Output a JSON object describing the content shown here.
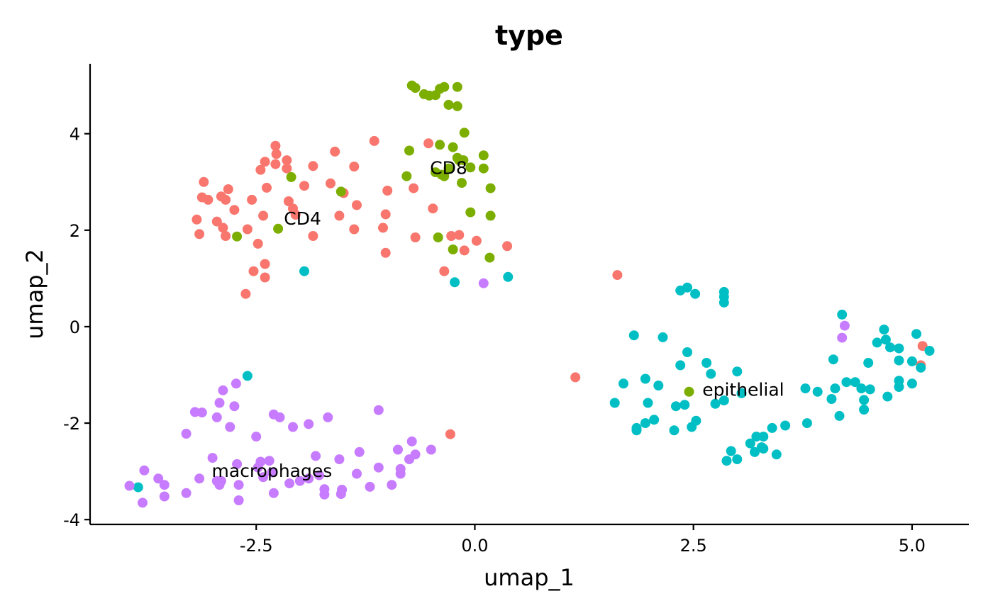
{
  "chart_data": {
    "type": "scatter",
    "title": "type",
    "xlabel": "umap_1",
    "ylabel": "umap_2",
    "xlim": [
      -4.4,
      5.65
    ],
    "ylim": [
      -4.1,
      5.45
    ],
    "grid": false,
    "legend": "none",
    "x_ticks": [
      {
        "value": -2.5,
        "label": "-2.5"
      },
      {
        "value": 0.0,
        "label": "0.0"
      },
      {
        "value": 2.5,
        "label": "2.5"
      },
      {
        "value": 5.0,
        "label": "5.0"
      }
    ],
    "y_ticks": [
      {
        "value": -4,
        "label": "-4"
      },
      {
        "value": -2,
        "label": "-2"
      },
      {
        "value": 0,
        "label": "0"
      },
      {
        "value": 2,
        "label": "2"
      },
      {
        "value": 4,
        "label": "4"
      }
    ],
    "series": [
      {
        "name": "CD4",
        "color": "#F8766D",
        "points": [
          [
            -3.1,
            3.0
          ],
          [
            -3.12,
            2.68
          ],
          [
            -3.15,
            1.92
          ],
          [
            -3.18,
            2.22
          ],
          [
            -3.05,
            2.63
          ],
          [
            -2.95,
            2.18
          ],
          [
            -2.88,
            2.05
          ],
          [
            -2.85,
            1.88
          ],
          [
            -2.9,
            2.7
          ],
          [
            -2.82,
            2.85
          ],
          [
            -2.85,
            2.63
          ],
          [
            -2.75,
            2.42
          ],
          [
            -2.6,
            2.02
          ],
          [
            -2.55,
            2.63
          ],
          [
            -2.48,
            1.72
          ],
          [
            -2.45,
            3.25
          ],
          [
            -2.4,
            3.42
          ],
          [
            -2.42,
            2.3
          ],
          [
            -2.38,
            2.88
          ],
          [
            -2.28,
            3.75
          ],
          [
            -2.27,
            3.58
          ],
          [
            -2.28,
            3.37
          ],
          [
            -2.15,
            3.45
          ],
          [
            -2.15,
            3.28
          ],
          [
            -2.13,
            2.6
          ],
          [
            -2.08,
            2.45
          ],
          [
            -2.05,
            2.32
          ],
          [
            -1.95,
            2.92
          ],
          [
            -1.85,
            3.33
          ],
          [
            -1.85,
            1.88
          ],
          [
            -1.65,
            2.97
          ],
          [
            -1.6,
            3.63
          ],
          [
            -1.55,
            2.3
          ],
          [
            -1.5,
            2.77
          ],
          [
            -1.38,
            3.32
          ],
          [
            -1.35,
            2.52
          ],
          [
            -1.38,
            2.02
          ],
          [
            -1.15,
            3.85
          ],
          [
            -1.05,
            2.05
          ],
          [
            -1.02,
            2.33
          ],
          [
            -1.0,
            2.82
          ],
          [
            -1.02,
            1.53
          ],
          [
            -0.7,
            2.87
          ],
          [
            -0.68,
            1.85
          ],
          [
            -0.53,
            3.8
          ],
          [
            -0.48,
            2.45
          ],
          [
            -0.35,
            1.15
          ],
          [
            -0.27,
            1.88
          ],
          [
            -0.18,
            1.9
          ],
          [
            -0.12,
            1.58
          ],
          [
            0.02,
            1.78
          ],
          [
            0.37,
            1.67
          ],
          [
            -2.53,
            1.15
          ],
          [
            -2.4,
            1.3
          ],
          [
            -2.4,
            1.02
          ],
          [
            -2.62,
            0.68
          ],
          [
            1.63,
            1.07
          ],
          [
            1.15,
            -1.05
          ],
          [
            -0.28,
            -2.23
          ],
          [
            5.12,
            -0.4
          ],
          [
            5.1,
            -0.8
          ]
        ]
      },
      {
        "name": "CD8",
        "color": "#7CAE00",
        "points": [
          [
            -0.72,
            5.0
          ],
          [
            -0.68,
            4.95
          ],
          [
            -0.58,
            4.82
          ],
          [
            -0.52,
            4.79
          ],
          [
            -0.45,
            4.8
          ],
          [
            -0.4,
            4.93
          ],
          [
            -0.35,
            4.97
          ],
          [
            -0.2,
            4.97
          ],
          [
            -0.3,
            4.6
          ],
          [
            -0.2,
            4.57
          ],
          [
            -0.4,
            3.77
          ],
          [
            -0.25,
            3.72
          ],
          [
            -0.2,
            3.5
          ],
          [
            -0.18,
            3.45
          ],
          [
            -0.13,
            3.45
          ],
          [
            -0.05,
            3.3
          ],
          [
            -0.3,
            3.28
          ],
          [
            -0.38,
            3.15
          ],
          [
            -0.35,
            3.12
          ],
          [
            -0.45,
            3.2
          ],
          [
            -0.75,
            3.65
          ],
          [
            -0.78,
            3.12
          ],
          [
            -0.12,
            4.02
          ],
          [
            0.1,
            3.55
          ],
          [
            0.1,
            3.28
          ],
          [
            0.18,
            2.87
          ],
          [
            0.18,
            2.3
          ],
          [
            -0.05,
            2.37
          ],
          [
            -0.15,
            2.98
          ],
          [
            0.17,
            1.43
          ],
          [
            -0.42,
            1.85
          ],
          [
            -0.25,
            1.6
          ],
          [
            -2.1,
            3.1
          ],
          [
            -1.53,
            2.8
          ],
          [
            -2.25,
            2.03
          ],
          [
            -2.72,
            1.87
          ],
          [
            2.45,
            -1.35
          ]
        ]
      },
      {
        "name": "epithelial",
        "color": "#00BFC4",
        "points": [
          [
            -1.95,
            1.15
          ],
          [
            -0.23,
            0.92
          ],
          [
            0.38,
            1.03
          ],
          [
            -2.6,
            -1.02
          ],
          [
            -3.85,
            -3.33
          ],
          [
            2.35,
            0.75
          ],
          [
            2.43,
            0.81
          ],
          [
            2.52,
            0.68
          ],
          [
            2.85,
            0.72
          ],
          [
            2.85,
            0.62
          ],
          [
            2.85,
            0.5
          ],
          [
            1.82,
            -0.18
          ],
          [
            2.15,
            -0.22
          ],
          [
            2.43,
            -0.53
          ],
          [
            2.35,
            -0.8
          ],
          [
            2.65,
            -0.75
          ],
          [
            2.7,
            -0.98
          ],
          [
            3.0,
            -0.93
          ],
          [
            1.7,
            -1.18
          ],
          [
            1.95,
            -1.08
          ],
          [
            2.1,
            -1.22
          ],
          [
            3.05,
            -1.38
          ],
          [
            1.6,
            -1.58
          ],
          [
            1.98,
            -1.58
          ],
          [
            2.3,
            -1.65
          ],
          [
            2.4,
            -1.62
          ],
          [
            2.75,
            -1.6
          ],
          [
            2.85,
            -1.53
          ],
          [
            1.85,
            -2.1
          ],
          [
            1.85,
            -2.15
          ],
          [
            1.95,
            -2.0
          ],
          [
            2.05,
            -1.93
          ],
          [
            2.28,
            -2.15
          ],
          [
            2.48,
            -2.08
          ],
          [
            2.53,
            -1.95
          ],
          [
            3.15,
            -2.42
          ],
          [
            3.22,
            -2.28
          ],
          [
            3.3,
            -2.28
          ],
          [
            3.28,
            -2.5
          ],
          [
            3.4,
            -2.1
          ],
          [
            3.55,
            -2.05
          ],
          [
            3.2,
            -2.6
          ],
          [
            3.3,
            -2.53
          ],
          [
            3.45,
            -2.65
          ],
          [
            2.93,
            -2.58
          ],
          [
            3.0,
            -2.75
          ],
          [
            2.88,
            -2.78
          ],
          [
            3.78,
            -1.28
          ],
          [
            3.92,
            -1.35
          ],
          [
            4.08,
            -1.5
          ],
          [
            4.12,
            -1.28
          ],
          [
            4.1,
            -0.68
          ],
          [
            4.25,
            -1.15
          ],
          [
            4.35,
            -1.15
          ],
          [
            4.42,
            -1.28
          ],
          [
            4.45,
            -1.52
          ],
          [
            4.45,
            -1.72
          ],
          [
            4.52,
            -1.3
          ],
          [
            4.5,
            -0.75
          ],
          [
            4.17,
            -1.85
          ],
          [
            3.8,
            -2.0
          ],
          [
            4.2,
            0.25
          ],
          [
            4.6,
            -0.33
          ],
          [
            4.7,
            -0.27
          ],
          [
            4.68,
            -0.06
          ],
          [
            4.75,
            -0.43
          ],
          [
            4.85,
            -0.45
          ],
          [
            4.85,
            -0.7
          ],
          [
            4.85,
            -1.12
          ],
          [
            4.85,
            -1.25
          ],
          [
            4.72,
            -1.45
          ],
          [
            5.0,
            -1.18
          ],
          [
            5.05,
            -0.15
          ],
          [
            5.0,
            -0.72
          ],
          [
            5.1,
            -0.85
          ],
          [
            5.2,
            -0.5
          ]
        ]
      },
      {
        "name": "macrophages",
        "color": "#C77CFF",
        "points": [
          [
            -2.73,
            -1.18
          ],
          [
            -2.88,
            -1.32
          ],
          [
            -2.92,
            -1.58
          ],
          [
            -3.2,
            -1.77
          ],
          [
            -3.12,
            -1.78
          ],
          [
            -2.95,
            -1.88
          ],
          [
            -2.75,
            -1.65
          ],
          [
            -2.8,
            -2.08
          ],
          [
            -3.3,
            -2.22
          ],
          [
            -2.5,
            -2.28
          ],
          [
            -2.3,
            -1.82
          ],
          [
            -2.23,
            -1.88
          ],
          [
            -2.08,
            -2.08
          ],
          [
            -1.9,
            -2.02
          ],
          [
            -1.68,
            -1.88
          ],
          [
            -1.1,
            -1.73
          ],
          [
            -0.88,
            -2.55
          ],
          [
            -0.72,
            -2.38
          ],
          [
            -0.75,
            -2.75
          ],
          [
            -0.68,
            -2.65
          ],
          [
            -0.5,
            -2.55
          ],
          [
            -3.0,
            -2.72
          ],
          [
            -2.72,
            -2.85
          ],
          [
            -2.45,
            -2.8
          ],
          [
            -2.35,
            -2.78
          ],
          [
            -2.48,
            -2.92
          ],
          [
            -2.32,
            -3.02
          ],
          [
            -2.42,
            -3.12
          ],
          [
            -3.15,
            -3.15
          ],
          [
            -2.95,
            -3.2
          ],
          [
            -2.9,
            -3.2
          ],
          [
            -2.92,
            -3.28
          ],
          [
            -2.7,
            -3.28
          ],
          [
            -2.3,
            -3.45
          ],
          [
            -2.12,
            -3.25
          ],
          [
            -2.0,
            -3.2
          ],
          [
            -1.9,
            -3.15
          ],
          [
            -1.82,
            -2.68
          ],
          [
            -1.78,
            -3.08
          ],
          [
            -1.72,
            -3.37
          ],
          [
            -1.72,
            -3.48
          ],
          [
            -1.55,
            -2.75
          ],
          [
            -1.52,
            -3.38
          ],
          [
            -1.53,
            -3.47
          ],
          [
            -1.32,
            -2.6
          ],
          [
            -1.35,
            -3.05
          ],
          [
            -1.2,
            -3.32
          ],
          [
            -1.1,
            -2.92
          ],
          [
            -0.95,
            -3.28
          ],
          [
            -0.85,
            -2.95
          ],
          [
            -0.85,
            -3.05
          ],
          [
            -3.95,
            -3.3
          ],
          [
            -3.78,
            -2.98
          ],
          [
            -3.62,
            -3.15
          ],
          [
            -3.55,
            -3.28
          ],
          [
            -3.55,
            -3.52
          ],
          [
            -3.3,
            -3.45
          ],
          [
            -3.8,
            -3.65
          ],
          [
            -2.7,
            -3.6
          ],
          [
            0.1,
            0.9
          ],
          [
            4.23,
            0.02
          ],
          [
            4.2,
            -0.23
          ]
        ]
      }
    ],
    "annotations": [
      {
        "text": "CD4",
        "x": -1.97,
        "y": 2.25
      },
      {
        "text": "CD8",
        "x": -0.3,
        "y": 3.3
      },
      {
        "text": "epithelial",
        "x": 3.07,
        "y": -1.3
      },
      {
        "text": "macrophages",
        "x": -2.32,
        "y": -2.98
      }
    ]
  }
}
